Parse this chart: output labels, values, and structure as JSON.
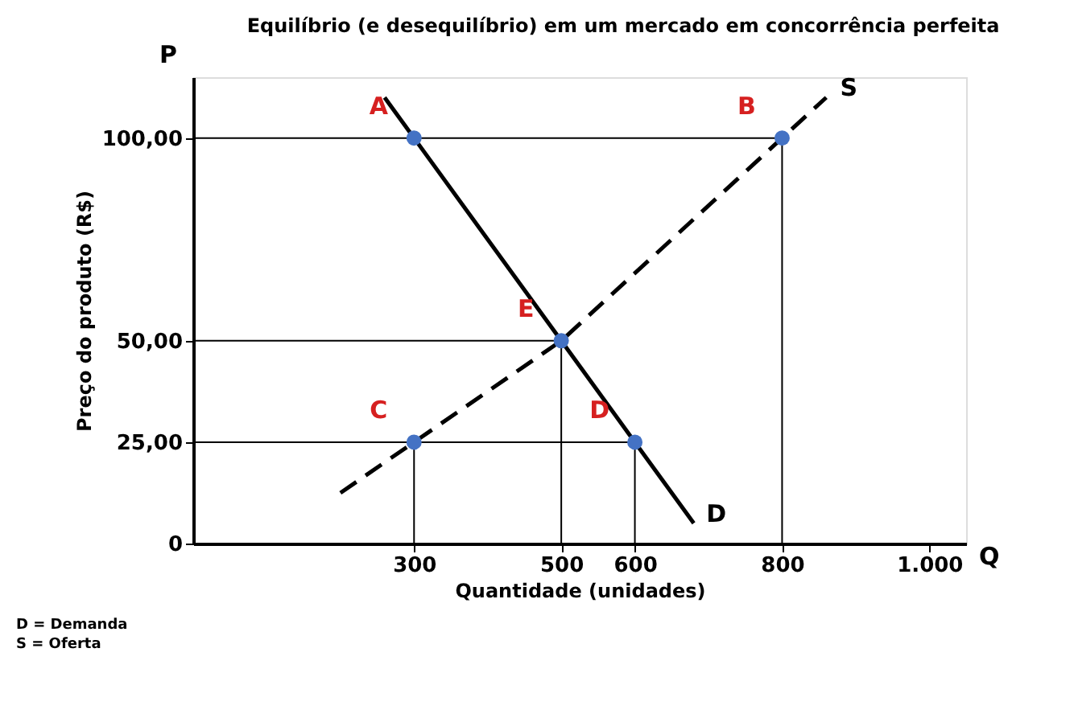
{
  "chart_data": {
    "type": "line",
    "title": "Equilíbrio (e desequilíbrio) em um mercado em concorrência perfeita",
    "xlabel": "Quantidade (unidades)",
    "ylabel": "Preço do produto (R$)",
    "xlim": [
      0,
      1050
    ],
    "ylim": [
      0,
      115
    ],
    "xticks": [
      300,
      500,
      600,
      800,
      {
        "value": 1000,
        "label": "1.000"
      }
    ],
    "yticks": [
      0,
      {
        "value": 25,
        "label": "25,00"
      },
      {
        "value": 50,
        "label": "50,00"
      },
      {
        "value": 100,
        "label": "100,00"
      }
    ],
    "grid": false,
    "legend": false,
    "series": [
      {
        "name": "D",
        "color": "#000000",
        "line_style": "solid",
        "x": [
          260,
          300,
          500,
          600,
          680
        ],
        "values": [
          110,
          100,
          50,
          25,
          5
        ]
      },
      {
        "name": "S",
        "color": "#000000",
        "line_style": "dashed",
        "x": [
          200,
          300,
          500,
          800,
          860
        ],
        "values": [
          12.5,
          25,
          50,
          100,
          110
        ]
      },
      {
        "color": "#000000",
        "line_style": "solid",
        "x": [
          0,
          800,
          800
        ],
        "values": [
          100,
          100,
          0
        ]
      },
      {
        "color": "#000000",
        "line_style": "solid",
        "x": [
          0,
          500,
          500
        ],
        "values": [
          50,
          50,
          0
        ]
      },
      {
        "color": "#000000",
        "line_style": "solid",
        "x": [
          0,
          600,
          600
        ],
        "values": [
          25,
          25,
          0
        ]
      },
      {
        "color": "#000000",
        "line_style": "solid",
        "x": [
          300,
          300
        ],
        "values": [
          25,
          0
        ]
      },
      {
        "type": "scatter",
        "marker": "circle",
        "color": "#4472c4",
        "x": [
          300,
          800,
          300,
          600,
          500
        ],
        "values": [
          100,
          100,
          25,
          25,
          50
        ]
      }
    ],
    "annotations": [
      {
        "text": "A",
        "x": 300,
        "y": 100
      },
      {
        "text": "B",
        "x": 800,
        "y": 100
      },
      {
        "text": "C",
        "x": 300,
        "y": 25
      },
      {
        "text": "D",
        "x": 600,
        "y": 25
      },
      {
        "text": "E",
        "x": 500,
        "y": 50
      },
      "P",
      "Q",
      "D = Demanda",
      "S = Oferta"
    ]
  }
}
